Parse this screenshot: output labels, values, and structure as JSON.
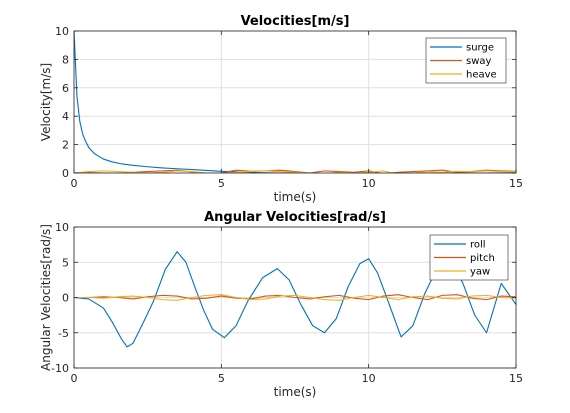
{
  "chart_data": [
    {
      "type": "line",
      "title": "Velocities[m/s]",
      "xlabel": "time(s)",
      "ylabel": "Velocity[m/s]",
      "xlim": [
        0,
        15
      ],
      "ylim": [
        0,
        10
      ],
      "xticks": [
        0,
        5,
        10,
        15
      ],
      "yticks": [
        0,
        2,
        4,
        6,
        8,
        10
      ],
      "grid": true,
      "legend": "top-right",
      "series": [
        {
          "name": "surge",
          "color": "#0072bd",
          "x": [
            0,
            0.1,
            0.2,
            0.3,
            0.4,
            0.5,
            0.7,
            1.0,
            1.3,
            1.6,
            2.0,
            2.5,
            3.0,
            3.5,
            4.0,
            4.5,
            5.0,
            5.5,
            6.0,
            7.0,
            8.0,
            9.0,
            10.0,
            11.0,
            12.0,
            13.0,
            14.0,
            15.0
          ],
          "y": [
            10,
            5.4,
            3.6,
            2.7,
            2.2,
            1.8,
            1.35,
            0.98,
            0.78,
            0.65,
            0.54,
            0.44,
            0.36,
            0.3,
            0.24,
            0.18,
            0.12,
            0.08,
            0.04,
            0.0,
            -0.05,
            -0.08,
            -0.1,
            -0.08,
            -0.05,
            -0.02,
            0.0,
            0.02
          ]
        },
        {
          "name": "sway",
          "color": "#d95319",
          "x": [
            0,
            0.5,
            1.0,
            1.5,
            2.0,
            2.5,
            3.0,
            3.5,
            4.0,
            4.5,
            5.0,
            5.5,
            6.0,
            6.5,
            7.0,
            7.5,
            8.0,
            8.5,
            9.0,
            9.5,
            10.0,
            10.5,
            11.0,
            11.5,
            12.0,
            12.5,
            13.0,
            13.5,
            14.0,
            14.5,
            15.0
          ],
          "y": [
            0,
            0.02,
            0.0,
            -0.03,
            0.05,
            0.1,
            0.15,
            0.2,
            0.08,
            -0.05,
            0.0,
            0.2,
            0.12,
            0.15,
            0.2,
            0.1,
            0.0,
            0.15,
            0.1,
            0.05,
            0.15,
            -0.05,
            0.05,
            0.1,
            0.15,
            0.2,
            0.05,
            0.1,
            0.2,
            0.15,
            0.12
          ]
        },
        {
          "name": "heave",
          "color": "#edb120",
          "x": [
            0,
            0.5,
            1.0,
            1.5,
            2.0,
            2.5,
            3.0,
            3.5,
            4.0,
            4.5,
            5.0,
            5.5,
            6.0,
            6.5,
            7.0,
            7.5,
            8.0,
            8.5,
            9.0,
            9.5,
            10.0,
            10.5,
            11.0,
            11.5,
            12.0,
            12.5,
            13.0,
            13.5,
            14.0,
            14.5,
            15.0
          ],
          "y": [
            0,
            0.1,
            0.15,
            0.1,
            0.05,
            0.0,
            0.05,
            0.15,
            0.1,
            0.0,
            -0.05,
            0.05,
            0.1,
            0.15,
            0.1,
            0.05,
            0.0,
            -0.05,
            0.05,
            0.0,
            0.05,
            0.15,
            -0.1,
            0.0,
            0.1,
            0.05,
            0.12,
            0.08,
            0.15,
            0.1,
            0.1
          ]
        }
      ]
    },
    {
      "type": "line",
      "title": "Angular Velocities[rad/s]",
      "xlabel": "time(s)",
      "ylabel": "Angular Velocities[rad/s]",
      "xlim": [
        0,
        15
      ],
      "ylim": [
        -10,
        10
      ],
      "xticks": [
        0,
        5,
        10,
        15
      ],
      "yticks": [
        -10,
        -5,
        0,
        5,
        10
      ],
      "grid": true,
      "legend": "top-right",
      "series": [
        {
          "name": "roll",
          "color": "#0072bd",
          "x": [
            0,
            0.5,
            1.0,
            1.3,
            1.6,
            1.8,
            2.0,
            2.3,
            2.7,
            3.1,
            3.5,
            3.8,
            4.1,
            4.4,
            4.7,
            5.1,
            5.5,
            5.9,
            6.4,
            6.9,
            7.3,
            7.7,
            8.1,
            8.5,
            8.9,
            9.3,
            9.7,
            10.0,
            10.3,
            10.7,
            11.1,
            11.5,
            11.9,
            12.3,
            12.8,
            13.2,
            13.6,
            14.0,
            14.5,
            15.0
          ],
          "y": [
            0,
            -0.2,
            -1.5,
            -3.5,
            -5.8,
            -7.0,
            -6.5,
            -4.0,
            -0.5,
            4.0,
            6.5,
            5.0,
            1.5,
            -1.8,
            -4.5,
            -5.7,
            -4.0,
            -0.5,
            2.8,
            4.1,
            2.5,
            -1.0,
            -4.0,
            -5.0,
            -3.0,
            1.5,
            4.8,
            5.5,
            3.5,
            -1.0,
            -5.6,
            -4.0,
            0.5,
            4.0,
            5.3,
            2.0,
            -2.5,
            -5.0,
            2.0,
            -1.0
          ]
        },
        {
          "name": "pitch",
          "color": "#d95319",
          "x": [
            0,
            0.5,
            1.0,
            1.5,
            2.0,
            2.5,
            3.0,
            3.5,
            4.0,
            4.5,
            5.0,
            5.5,
            6.0,
            6.5,
            7.0,
            7.5,
            8.0,
            8.5,
            9.0,
            9.5,
            10.0,
            10.5,
            11.0,
            11.5,
            12.0,
            12.5,
            13.0,
            13.5,
            14.0,
            14.5,
            15.0
          ],
          "y": [
            0,
            0.0,
            0.1,
            0.0,
            -0.2,
            0.1,
            0.3,
            0.2,
            -0.2,
            -0.1,
            0.2,
            -0.1,
            -0.2,
            0.2,
            0.3,
            0.0,
            -0.2,
            0.1,
            0.3,
            -0.1,
            -0.3,
            0.2,
            0.4,
            0.0,
            -0.3,
            0.3,
            0.4,
            -0.1,
            -0.3,
            0.2,
            0.1
          ]
        },
        {
          "name": "yaw",
          "color": "#edb120",
          "x": [
            0,
            0.5,
            1.0,
            1.5,
            2.0,
            2.5,
            3.0,
            3.5,
            4.0,
            4.5,
            5.0,
            5.5,
            6.0,
            6.5,
            7.0,
            7.5,
            8.0,
            8.5,
            9.0,
            9.5,
            10.0,
            10.5,
            11.0,
            11.5,
            12.0,
            12.5,
            13.0,
            13.5,
            14.0,
            14.5,
            15.0
          ],
          "y": [
            0,
            0.0,
            -0.1,
            0.1,
            0.2,
            0.0,
            -0.3,
            -0.4,
            0.0,
            0.3,
            0.4,
            0.0,
            -0.3,
            -0.2,
            0.2,
            0.3,
            0.0,
            -0.3,
            -0.4,
            0.0,
            0.3,
            0.0,
            -0.3,
            0.1,
            0.2,
            -0.1,
            -0.2,
            0.2,
            0.3,
            0.0,
            -0.1
          ]
        }
      ]
    }
  ]
}
